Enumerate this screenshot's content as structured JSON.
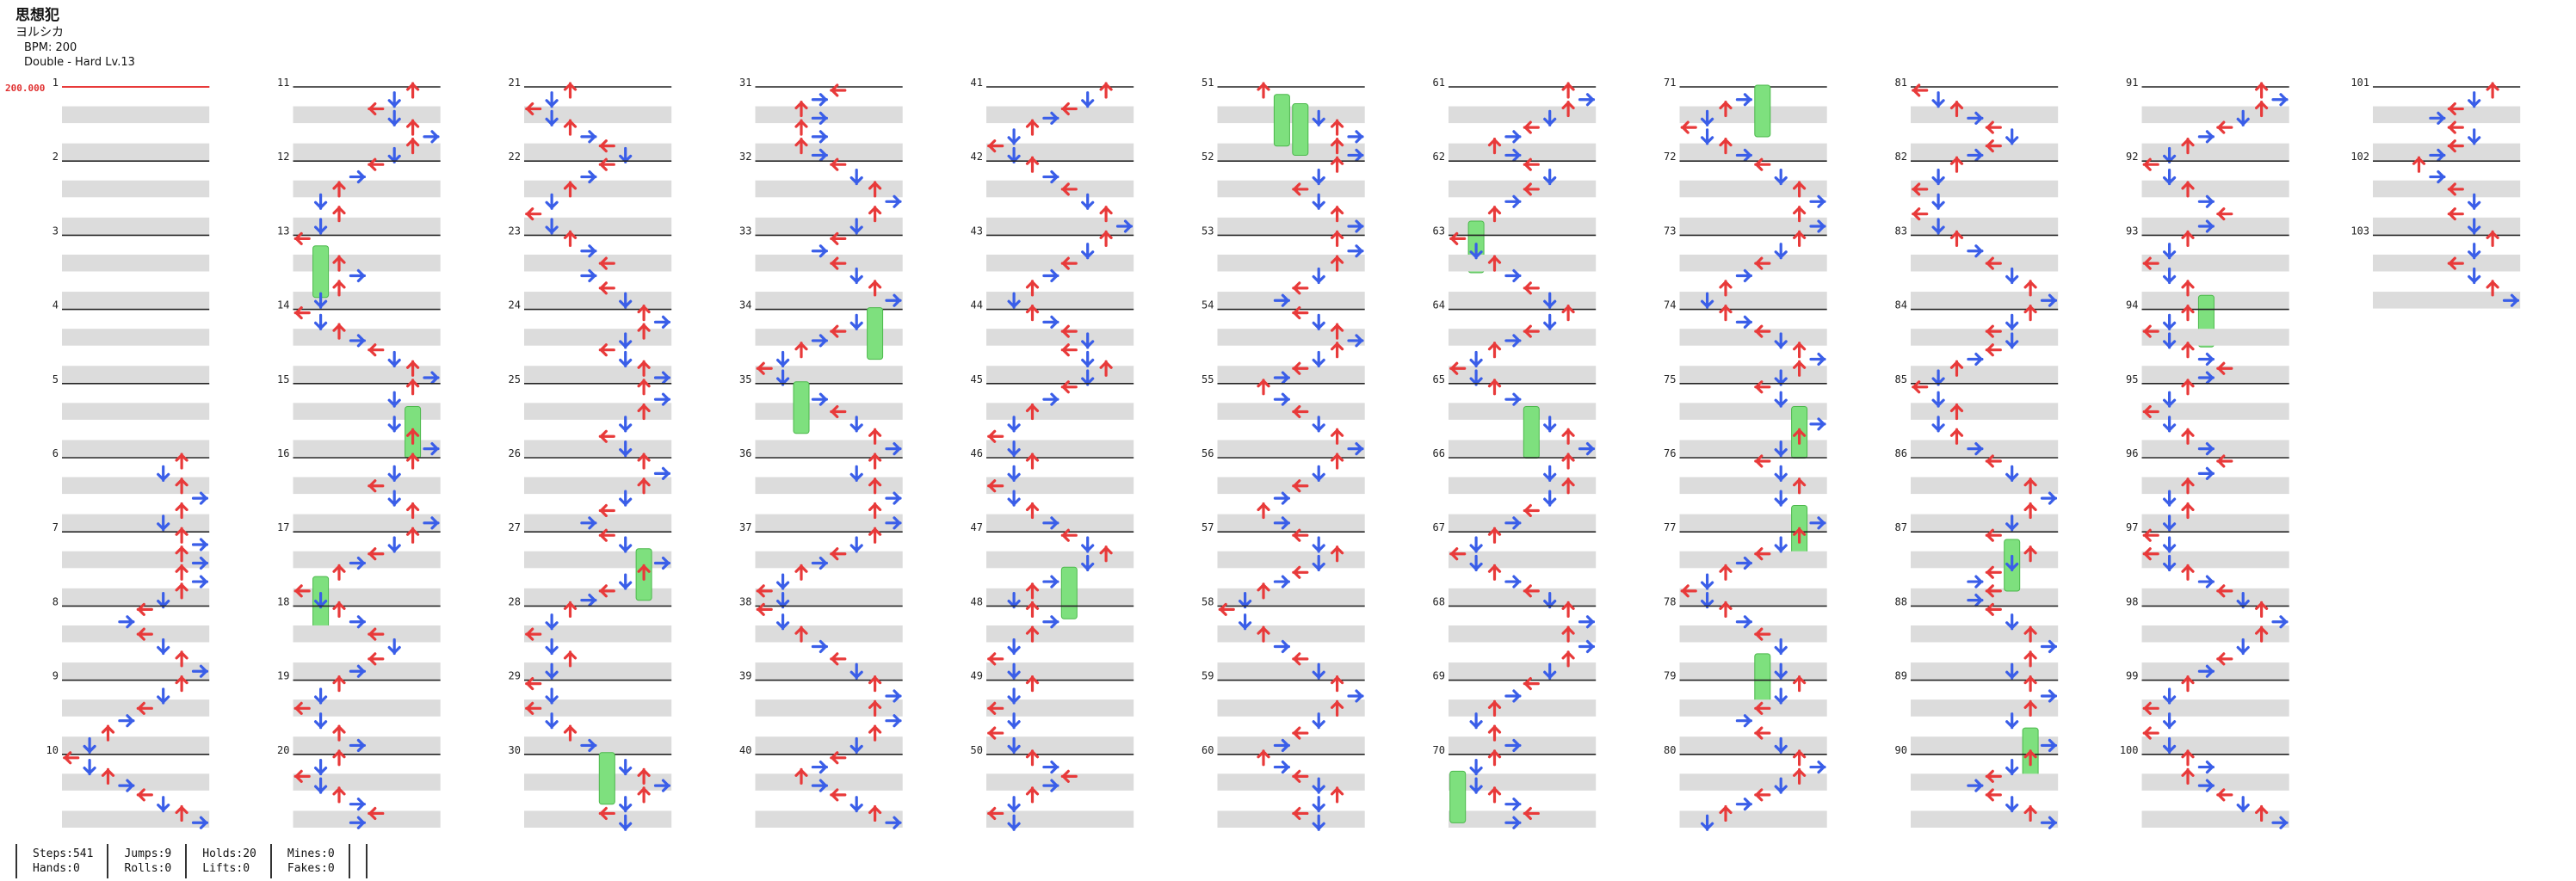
{
  "song": {
    "title": "思想犯",
    "artist": "ヨルシカ",
    "bpm_label": "BPM: 200",
    "difficulty_label": "Double - Hard Lv.13"
  },
  "bpm_change_label": "200.000",
  "measure_count": 103,
  "columns_layout": "10 measures per column",
  "note_colors": {
    "quarter": "#e83a3a",
    "eighth": "#3a5ee8",
    "hold": "#7ee07e"
  },
  "stats": [
    {
      "label": "Steps:541",
      "label2": "Hands:0"
    },
    {
      "label": "Jumps:9",
      "label2": "Rolls:0"
    },
    {
      "label": "Holds:20",
      "label2": "Lifts:0"
    },
    {
      "label": "Mines:0",
      "label2": "Fakes:0"
    },
    {
      "label": "",
      "label2": ""
    }
  ],
  "measure_labels": [
    "1",
    "2",
    "3",
    "4",
    "5",
    "6",
    "7",
    "8",
    "9",
    "10",
    "11",
    "12",
    "13",
    "14",
    "15",
    "16",
    "17",
    "18",
    "19",
    "20",
    "21",
    "22",
    "23",
    "24",
    "25",
    "26",
    "27",
    "28",
    "29",
    "30",
    "31",
    "32",
    "33",
    "34",
    "35",
    "36",
    "37",
    "38",
    "39",
    "40",
    "41",
    "42",
    "43",
    "44",
    "45",
    "46",
    "47",
    "48",
    "49",
    "50",
    "51",
    "52",
    "53",
    "54",
    "55",
    "56",
    "57",
    "58",
    "59",
    "60",
    "61",
    "62",
    "63",
    "64",
    "65",
    "66",
    "67",
    "68",
    "69",
    "70",
    "71",
    "72",
    "73",
    "74",
    "75",
    "76",
    "77",
    "78",
    "79",
    "80",
    "81",
    "82",
    "83",
    "84",
    "85",
    "86",
    "87",
    "88",
    "89",
    "90",
    "91",
    "92",
    "93",
    "94",
    "95",
    "96",
    "97",
    "98",
    "99",
    "100",
    "101",
    "102",
    "103"
  ]
}
